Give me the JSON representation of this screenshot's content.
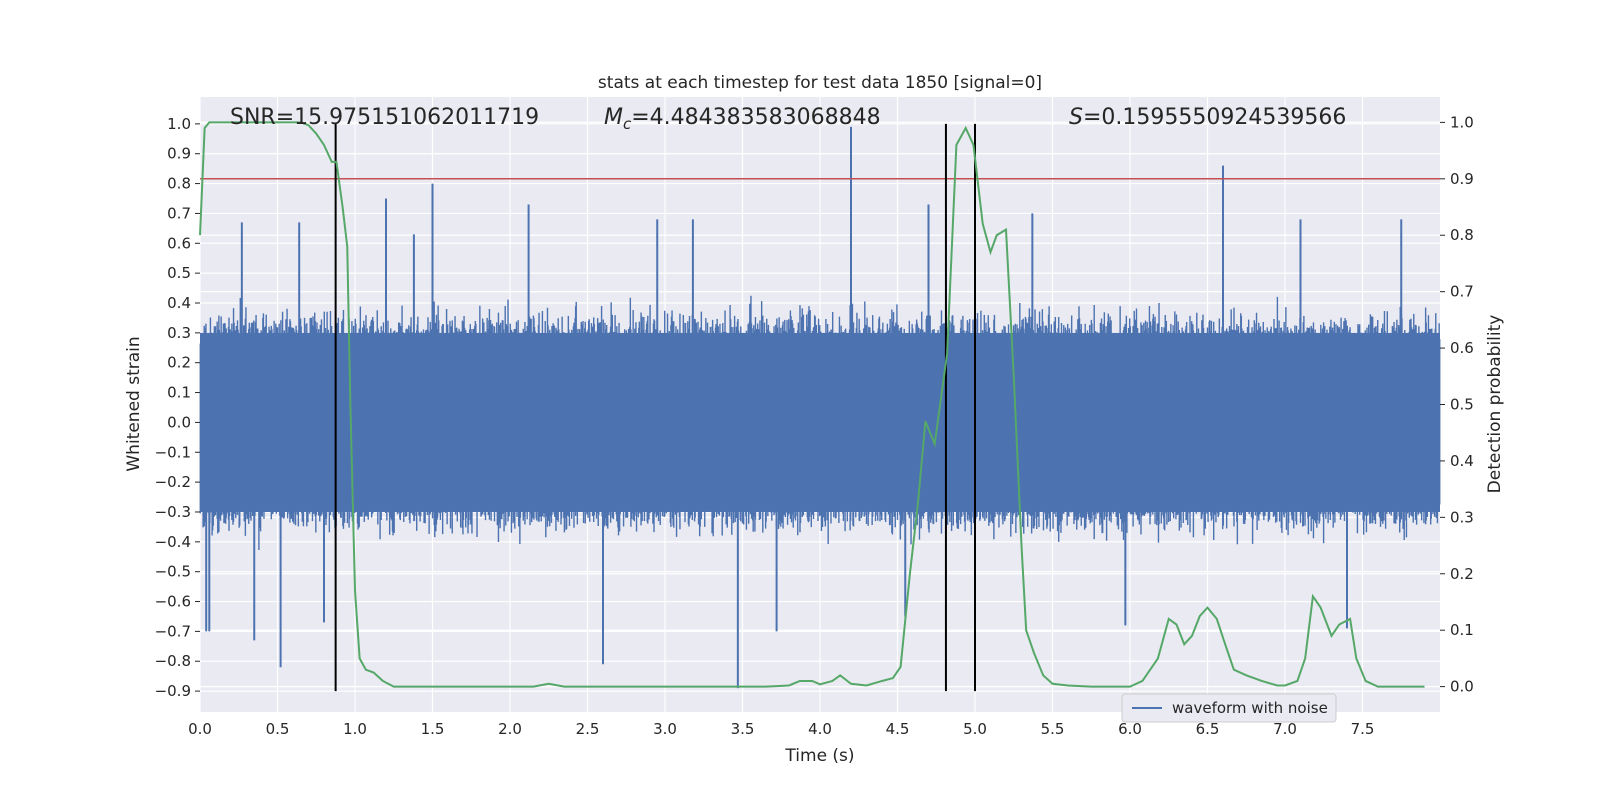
{
  "chart_data": {
    "type": "line",
    "title": "stats at each timestep for test data 1850 [signal=0]",
    "xlabel": "Time (s)",
    "ylabel_left": "Whitened strain",
    "ylabel_right": "Detection probability",
    "xlim": [
      0.0,
      8.0
    ],
    "ylim_left": [
      -0.97,
      1.09
    ],
    "ylim_right": [
      -0.045,
      1.045
    ],
    "x_ticks": [
      0.0,
      0.5,
      1.0,
      1.5,
      2.0,
      2.5,
      3.0,
      3.5,
      4.0,
      4.5,
      5.0,
      5.5,
      6.0,
      6.5,
      7.0,
      7.5
    ],
    "x_tick_labels": [
      "0.0",
      "0.5",
      "1.0",
      "1.5",
      "2.0",
      "2.5",
      "3.0",
      "3.5",
      "4.0",
      "4.5",
      "5.0",
      "5.5",
      "6.0",
      "6.5",
      "7.0",
      "7.5"
    ],
    "y_left_ticks": [
      -0.9,
      -0.8,
      -0.7,
      -0.6,
      -0.5,
      -0.4,
      -0.3,
      -0.2,
      -0.1,
      0.0,
      0.1,
      0.2,
      0.3,
      0.4,
      0.5,
      0.6,
      0.7,
      0.8,
      0.9,
      1.0
    ],
    "y_left_tick_labels": [
      "−0.9",
      "−0.8",
      "−0.7",
      "−0.6",
      "−0.5",
      "−0.4",
      "−0.3",
      "−0.2",
      "−0.1",
      "0.0",
      "0.1",
      "0.2",
      "0.3",
      "0.4",
      "0.5",
      "0.6",
      "0.7",
      "0.8",
      "0.9",
      "1.0"
    ],
    "y_right_ticks": [
      0.0,
      0.1,
      0.2,
      0.3,
      0.4,
      0.5,
      0.6,
      0.7,
      0.8,
      0.9,
      1.0
    ],
    "y_right_tick_labels": [
      "0.0",
      "0.1",
      "0.2",
      "0.3",
      "0.4",
      "0.5",
      "0.6",
      "0.7",
      "0.8",
      "0.9",
      "1.0"
    ],
    "grid": true,
    "background_color": "#eaeaf2",
    "annotations": {
      "snr": "SNR=15.975151062011719",
      "mc_symbol": "M",
      "mc_subscript": "c",
      "mc_value": "=4.484383583068848",
      "s_symbol": "S",
      "s_value": "=0.1595550924539566"
    },
    "series": [
      {
        "name": "waveform with noise",
        "axis": "left",
        "color": "#4c72b0",
        "style": "noise-bars",
        "envelope_typical": [
          -0.3,
          0.3
        ],
        "spikes": [
          {
            "x": 0.04,
            "y": -0.7
          },
          {
            "x": 0.06,
            "y": -0.7
          },
          {
            "x": 0.27,
            "y": 0.67
          },
          {
            "x": 0.35,
            "y": -0.73
          },
          {
            "x": 0.52,
            "y": -0.82
          },
          {
            "x": 0.64,
            "y": 0.67
          },
          {
            "x": 0.8,
            "y": -0.67
          },
          {
            "x": 1.2,
            "y": 0.75
          },
          {
            "x": 1.38,
            "y": 0.63
          },
          {
            "x": 1.5,
            "y": 0.8
          },
          {
            "x": 2.12,
            "y": 0.73
          },
          {
            "x": 2.6,
            "y": -0.81
          },
          {
            "x": 2.95,
            "y": 0.68
          },
          {
            "x": 3.18,
            "y": 0.68
          },
          {
            "x": 3.47,
            "y": -0.89
          },
          {
            "x": 3.72,
            "y": -0.7
          },
          {
            "x": 4.2,
            "y": 0.99
          },
          {
            "x": 4.55,
            "y": -0.65
          },
          {
            "x": 4.7,
            "y": 0.73
          },
          {
            "x": 5.37,
            "y": 0.7
          },
          {
            "x": 5.97,
            "y": -0.68
          },
          {
            "x": 6.6,
            "y": 0.86
          },
          {
            "x": 6.75,
            "y": -0.1
          },
          {
            "x": 7.1,
            "y": 0.68
          },
          {
            "x": 7.4,
            "y": -0.69
          },
          {
            "x": 7.75,
            "y": 0.68
          }
        ]
      },
      {
        "name": "",
        "axis": "right",
        "color": "#55a868",
        "x": [
          0.0,
          0.03,
          0.06,
          0.12,
          0.2,
          0.3,
          0.4,
          0.5,
          0.6,
          0.65,
          0.7,
          0.75,
          0.8,
          0.85,
          0.88,
          0.92,
          0.95,
          0.97,
          1.0,
          1.03,
          1.07,
          1.12,
          1.18,
          1.25,
          1.35,
          1.5,
          1.7,
          1.85,
          2.0,
          2.15,
          2.25,
          2.35,
          2.5,
          2.7,
          2.9,
          3.1,
          3.3,
          3.5,
          3.65,
          3.8,
          3.87,
          3.95,
          4.0,
          4.08,
          4.13,
          4.2,
          4.3,
          4.4,
          4.47,
          4.52,
          4.58,
          4.63,
          4.68,
          4.74,
          4.82,
          4.88,
          4.94,
          4.99,
          5.05,
          5.1,
          5.14,
          5.2,
          5.25,
          5.3,
          5.33,
          5.38,
          5.44,
          5.5,
          5.6,
          5.75,
          5.9,
          6.0,
          6.08,
          6.13,
          6.18,
          6.25,
          6.3,
          6.35,
          6.4,
          6.45,
          6.5,
          6.56,
          6.62,
          6.67,
          6.75,
          6.85,
          6.95,
          7.0,
          7.08,
          7.13,
          7.18,
          7.23,
          7.3,
          7.35,
          7.42,
          7.46,
          7.52,
          7.6,
          7.7,
          7.9
        ],
        "y": [
          0.8,
          0.99,
          1.0,
          1.0,
          1.0,
          1.0,
          1.0,
          1.0,
          1.0,
          1.0,
          0.995,
          0.98,
          0.96,
          0.93,
          0.93,
          0.85,
          0.78,
          0.5,
          0.17,
          0.05,
          0.03,
          0.025,
          0.01,
          0.0,
          0.0,
          0.0,
          0.0,
          0.0,
          0.0,
          0.0,
          0.005,
          0.0,
          0.0,
          0.0,
          0.0,
          0.0,
          0.0,
          0.0,
          0.0,
          0.002,
          0.01,
          0.01,
          0.004,
          0.01,
          0.02,
          0.005,
          0.002,
          0.01,
          0.015,
          0.035,
          0.2,
          0.32,
          0.47,
          0.43,
          0.59,
          0.96,
          0.99,
          0.96,
          0.82,
          0.77,
          0.8,
          0.81,
          0.55,
          0.25,
          0.1,
          0.06,
          0.02,
          0.005,
          0.002,
          0.0,
          0.0,
          0.0,
          0.01,
          0.03,
          0.05,
          0.12,
          0.11,
          0.075,
          0.09,
          0.125,
          0.14,
          0.12,
          0.07,
          0.03,
          0.02,
          0.01,
          0.002,
          0.002,
          0.01,
          0.05,
          0.16,
          0.14,
          0.09,
          0.11,
          0.12,
          0.05,
          0.01,
          0.0,
          0.0,
          0.0
        ]
      },
      {
        "name": "",
        "axis": "right",
        "color": "#c44e52",
        "style": "hline",
        "y": 0.9
      }
    ],
    "vlines": {
      "color": "#000000",
      "x": [
        0.875,
        4.8125,
        5.0
      ],
      "y_range_left": [
        -0.9,
        1.0
      ]
    },
    "legend": {
      "placement": "lower-right",
      "entries": [
        {
          "label": "waveform with noise",
          "color": "#4c72b0"
        }
      ]
    }
  }
}
